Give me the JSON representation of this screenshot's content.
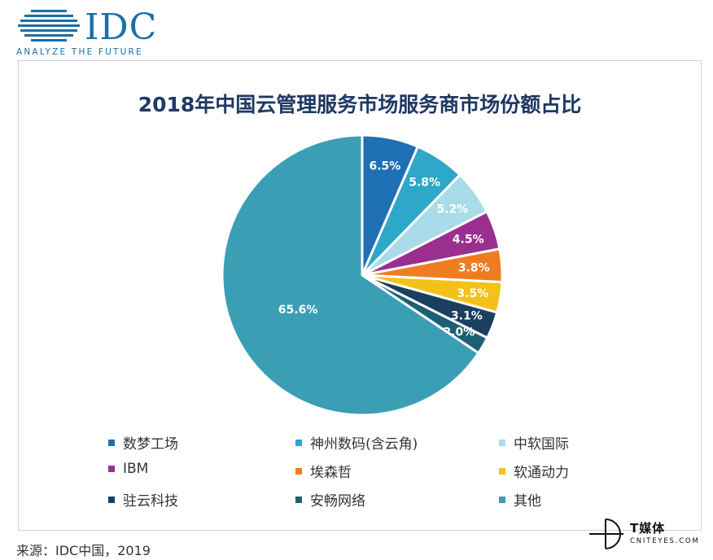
{
  "logo": {
    "text": "IDC",
    "tagline": "ANALYZE THE FUTURE",
    "color": "#1a6fa8"
  },
  "chart_data": {
    "type": "pie",
    "title": "2018年中国云管理服务市场服务商市场份额占比",
    "slices": [
      {
        "name": "数梦工场",
        "value": 6.5,
        "label": "6.5%",
        "color": "#1e6fb3"
      },
      {
        "name": "神州数码(含云角)",
        "value": 5.8,
        "label": "5.8%",
        "color": "#2ea7c9"
      },
      {
        "name": "中软国际",
        "value": 5.2,
        "label": "5.2%",
        "color": "#a9dbe8"
      },
      {
        "name": "IBM",
        "value": 4.5,
        "label": "4.5%",
        "color": "#9b2f8f"
      },
      {
        "name": "埃森哲",
        "value": 3.8,
        "label": "3.8%",
        "color": "#ee7d22"
      },
      {
        "name": "软通动力",
        "value": 3.5,
        "label": "3.5%",
        "color": "#f2c21b"
      },
      {
        "name": "驻云科技",
        "value": 3.1,
        "label": "3.1%",
        "color": "#1b3f5e"
      },
      {
        "name": "安畅网络",
        "value": 2.0,
        "label": "2.0%",
        "color": "#1c5f74"
      },
      {
        "name": "其他",
        "value": 65.6,
        "label": "65.6%",
        "color": "#3a9fb4"
      }
    ],
    "legend_position": "bottom"
  },
  "source": "来源：IDC中国，2019",
  "watermark": {
    "title": "T媒体",
    "subtitle": "CNITEYES.COM"
  }
}
